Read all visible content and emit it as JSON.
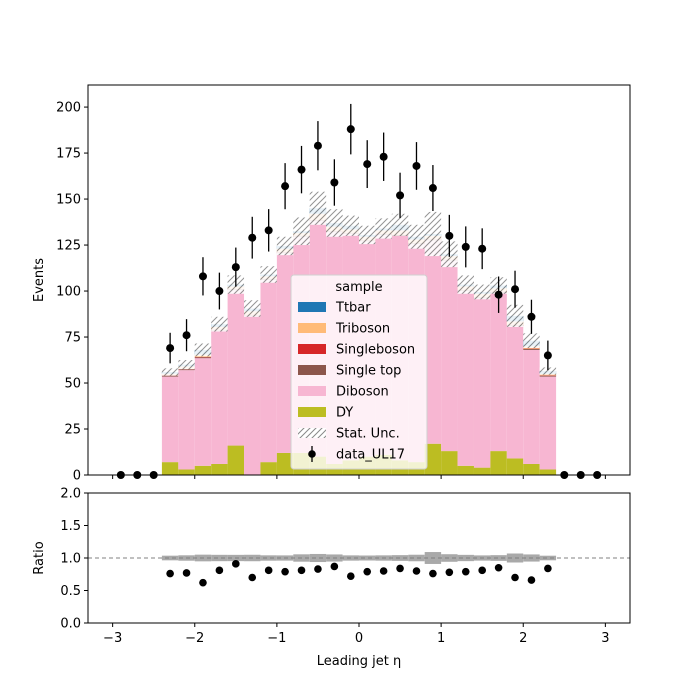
{
  "chart_data": {
    "type": "bar",
    "subtype": "stacked-histogram-with-ratio",
    "xlabel": "Leading jet  η",
    "ylabel": "Events",
    "ratio_ylabel": "Ratio",
    "xlim": [
      -3.3,
      3.3
    ],
    "ylim": [
      0,
      212
    ],
    "ratio_ylim": [
      0.0,
      2.0
    ],
    "xticks": [
      -3,
      -2,
      -1,
      0,
      1,
      2,
      3
    ],
    "xtick_labels": [
      "−3",
      "−2",
      "−1",
      "0",
      "1",
      "2",
      "3"
    ],
    "yticks": [
      0,
      25,
      50,
      75,
      100,
      125,
      150,
      175,
      200
    ],
    "ytick_labels": [
      "0",
      "25",
      "50",
      "75",
      "100",
      "125",
      "150",
      "175",
      "200"
    ],
    "ratio_yticks": [
      0.0,
      0.5,
      1.0,
      1.5,
      2.0
    ],
    "ratio_ytick_labels": [
      "0.0",
      "0.5",
      "1.0",
      "1.5",
      "2.0"
    ],
    "ratio_reference_line": 1.0,
    "legend": {
      "title": "sample",
      "placement": "center",
      "entries": [
        {
          "label": "Ttbar",
          "kind": "patch",
          "color": "#1f77b4"
        },
        {
          "label": "Triboson",
          "kind": "patch",
          "color": "#ffbb78"
        },
        {
          "label": "Singleboson",
          "kind": "patch",
          "color": "#d62728"
        },
        {
          "label": "Single top",
          "kind": "patch",
          "color": "#8c564b"
        },
        {
          "label": "Diboson",
          "kind": "patch",
          "color": "#f7b6d2"
        },
        {
          "label": "DY",
          "kind": "patch",
          "color": "#bcbd22"
        },
        {
          "label": "Stat. Unc.",
          "kind": "hatch",
          "color": "#888888"
        },
        {
          "label": "data_UL17",
          "kind": "errorbar",
          "color": "#000000"
        }
      ]
    },
    "bin_edges": [
      -2.4,
      -2.2,
      -2.0,
      -1.8,
      -1.6,
      -1.4,
      -1.2,
      -1.0,
      -0.8,
      -0.6,
      -0.4,
      -0.2,
      0.0,
      0.2,
      0.4,
      0.6,
      0.8,
      1.0,
      1.2,
      1.4,
      1.6,
      1.8,
      2.0,
      2.2,
      2.4
    ],
    "stack_order_bottom_to_top": [
      "DY",
      "Diboson",
      "Single top",
      "Singleboson",
      "Triboson",
      "Ttbar"
    ],
    "series": [
      {
        "name": "DY",
        "color": "#bcbd22",
        "values": [
          7,
          3,
          5,
          6,
          16,
          0,
          7,
          12,
          12,
          10,
          6,
          8,
          10,
          11,
          8,
          7,
          17,
          13,
          5,
          4,
          13,
          9,
          6,
          3
        ]
      },
      {
        "name": "Diboson",
        "color": "#f7b6d2",
        "values": [
          46.5,
          54,
          58.5,
          72.5,
          84.5,
          86.5,
          99,
          108.5,
          117.5,
          128,
          126,
          123,
          117,
          119.5,
          122,
          118.5,
          110.5,
          103.5,
          95,
          92,
          86,
          72,
          62,
          50.5
        ]
      },
      {
        "name": "Single top",
        "color": "#8c564b",
        "values": [
          0.5,
          0.5,
          0.5,
          0.5,
          0.5,
          0.5,
          0.5,
          0.5,
          0.5,
          0.5,
          0.5,
          0.5,
          0.5,
          0.5,
          0.5,
          0.5,
          0.5,
          0.5,
          0.5,
          0.5,
          0.5,
          0.5,
          0.5,
          0.5
        ]
      },
      {
        "name": "Singleboson",
        "color": "#d62728",
        "values": [
          0.2,
          0.2,
          0.2,
          0.2,
          0.2,
          0.2,
          0.2,
          0.2,
          0.2,
          0.2,
          0.2,
          0.2,
          0.2,
          0.2,
          0.2,
          0.2,
          0.2,
          0.2,
          0.2,
          0.2,
          0.2,
          0.2,
          0.2,
          0.2
        ]
      },
      {
        "name": "Triboson",
        "color": "#ffbb78",
        "values": [
          0.8,
          1.3,
          1.3,
          1.3,
          1.3,
          1.8,
          1.3,
          1.8,
          1.3,
          3.3,
          2.3,
          1.8,
          1.8,
          1.8,
          2.3,
          1.8,
          1.8,
          1.8,
          1.8,
          1.8,
          1.8,
          1.8,
          1.3,
          0.8
        ]
      },
      {
        "name": "Ttbar",
        "color": "#1f77b4",
        "values": [
          1,
          1,
          2.5,
          1.5,
          1,
          1.5,
          1,
          1.5,
          1,
          3,
          2,
          2,
          1,
          1,
          3,
          1.5,
          1,
          1,
          1,
          1,
          1.5,
          3,
          3,
          1.5
        ]
      }
    ],
    "stat_unc_halfwidth": [
      2,
      2.5,
      3.5,
      4,
      5,
      4.5,
      4.5,
      5,
      7.5,
      9,
      7.5,
      5.5,
      5,
      5.5,
      6,
      6.5,
      12,
      7,
      5,
      4,
      4.5,
      6,
      4,
      2
    ],
    "data": {
      "name": "data_UL17",
      "x": [
        -2.9,
        -2.7,
        -2.5,
        -2.3,
        -2.1,
        -1.9,
        -1.7,
        -1.5,
        -1.3,
        -1.1,
        -0.9,
        -0.7,
        -0.5,
        -0.3,
        -0.1,
        0.1,
        0.3,
        0.5,
        0.7,
        0.9,
        1.1,
        1.3,
        1.5,
        1.7,
        1.9,
        2.1,
        2.3,
        2.5,
        2.7,
        2.9
      ],
      "y": [
        0,
        0,
        0,
        69,
        76,
        108,
        100,
        113,
        129,
        133,
        157,
        166,
        179,
        159,
        188,
        169,
        173,
        152,
        168,
        156,
        130,
        124,
        123,
        98,
        101,
        86,
        65,
        0,
        0,
        0
      ],
      "ratio": [
        null,
        null,
        null,
        0.76,
        0.77,
        0.62,
        0.81,
        0.91,
        0.7,
        0.81,
        0.79,
        0.81,
        0.83,
        0.87,
        0.72,
        0.79,
        0.8,
        0.84,
        0.8,
        0.76,
        0.78,
        0.79,
        0.81,
        0.85,
        0.7,
        0.66,
        0.84,
        null,
        null,
        null
      ]
    }
  }
}
